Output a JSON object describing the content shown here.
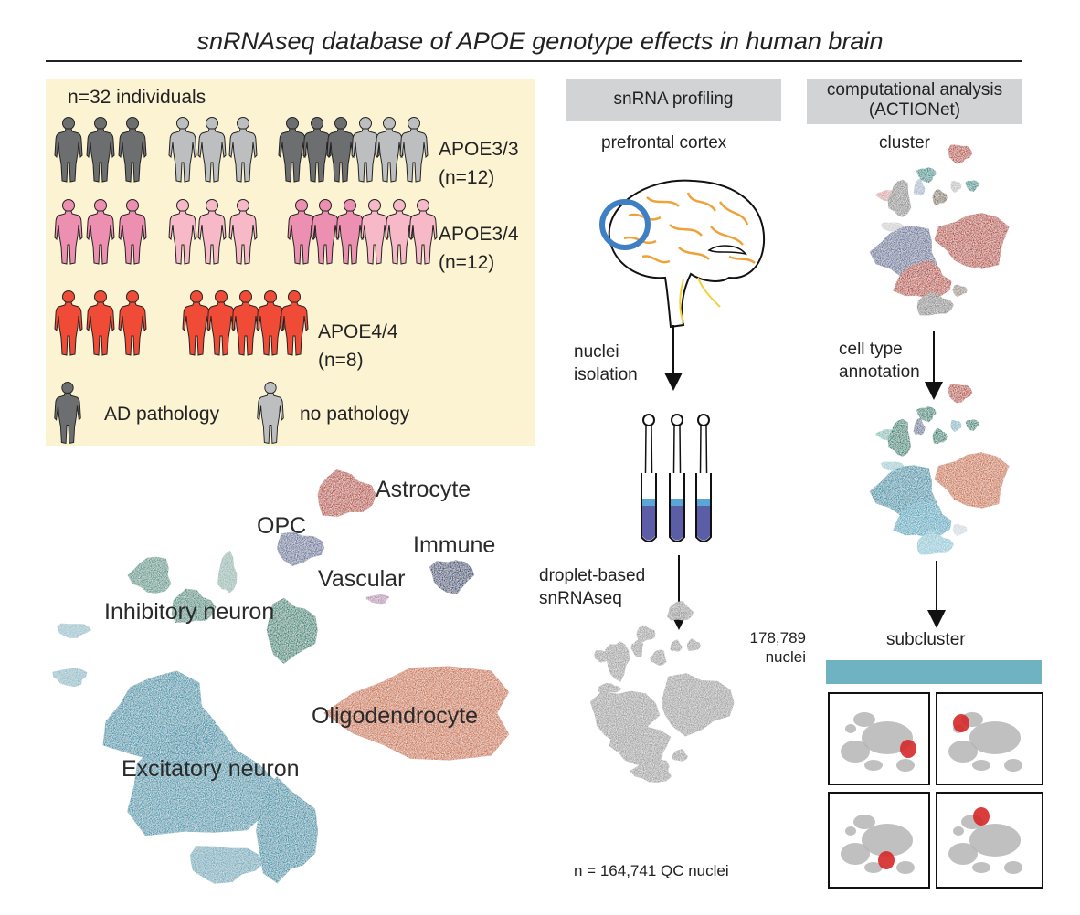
{
  "title": "snRNAseq database of APOE genotype effects in human brain",
  "cohort": {
    "total": "n=32 individuals",
    "groups": [
      {
        "genotype": "APOE3/3",
        "n": "(n=12)",
        "dark": "#6d6e70",
        "light": "#bcbec0"
      },
      {
        "genotype": "APOE3/4",
        "n": "(n=12)",
        "dark": "#ec8fb0",
        "light": "#f7b8c8"
      },
      {
        "genotype": "APOE4/4",
        "n": "(n=8)",
        "dark": "#ef4b36",
        "light": "#f36a55"
      }
    ],
    "legend": {
      "ad": "AD pathology",
      "none": "no pathology"
    }
  },
  "workflow": {
    "profiling": {
      "header": "snRNA profiling",
      "region": "prefrontal cortex",
      "step1": "nuclei\nisolation",
      "step2": "droplet-based\nsnRNAseq",
      "raw_count": "178,789\nnuclei",
      "qc_count": "n = 164,741 QC nuclei"
    },
    "analysis": {
      "header": "computational analysis\n(ACTIONet)",
      "step1": "cluster",
      "step2": "cell type\nannotation",
      "step3": "subcluster"
    }
  },
  "umap": {
    "labels": {
      "astrocyte": "Astrocyte",
      "opc": "OPC",
      "immune": "Immune",
      "vascular": "Vascular",
      "inhibitory": "Inhibitory neuron",
      "oligodendrocyte": "Oligodendrocyte",
      "excitatory": "Excitatory  neuron"
    },
    "colors": {
      "astrocyte": "#b5402f",
      "opc": "#5f6d96",
      "immune": "#2c3e6b",
      "vascular": "#b58bb0",
      "inhibitory": "#1f7f6e",
      "oligodendrocyte": "#c96a3a",
      "excitatory": "#2a8fa6",
      "gray": "#9d9d9d",
      "highlight": "#d62828",
      "bar": "#6fb3c2"
    }
  }
}
